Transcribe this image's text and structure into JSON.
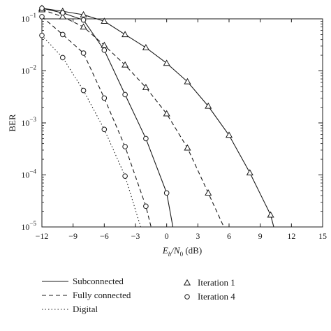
{
  "chart_data": {
    "type": "line",
    "xlabel": {
      "main": "E",
      "sub_b": "b",
      "mid": "/N",
      "sub_0": "0",
      "unit": " (dB)"
    },
    "ylabel": "BER",
    "xlim": [
      -12,
      15
    ],
    "ylim_exp": [
      -5,
      -1
    ],
    "yscale": "log",
    "x_ticks": [
      -12,
      -9,
      -6,
      -3,
      0,
      3,
      6,
      9,
      12,
      15
    ],
    "y_tick_exponents": [
      -1,
      -2,
      -3,
      -4,
      -5
    ],
    "y_tick_base": "10",
    "grid": false,
    "series": [
      {
        "name": "Subconnected",
        "style": "solid",
        "marker": "triangle",
        "iteration": "Iteration 1",
        "x": [
          -12,
          -10,
          -8,
          -6,
          -4,
          -2,
          0,
          2,
          4,
          6,
          8,
          10
        ],
        "y": [
          0.16,
          0.14,
          0.12,
          0.09,
          0.05,
          0.028,
          0.014,
          0.0062,
          0.0021,
          0.00058,
          0.00011,
          1.7e-05
        ]
      },
      {
        "name": "Fully connected",
        "style": "dashed",
        "marker": "triangle",
        "iteration": "Iteration 1",
        "x": [
          -12,
          -10,
          -8,
          -6,
          -4,
          -2,
          0,
          2,
          4
        ],
        "y": [
          0.15,
          0.11,
          0.07,
          0.031,
          0.013,
          0.0048,
          0.0015,
          0.00033,
          4.5e-05
        ]
      },
      {
        "name": "Subconnected",
        "style": "solid",
        "marker": "circle",
        "iteration": "Iteration 4",
        "x": [
          -12,
          -10,
          -8,
          -6,
          -4,
          -2,
          0
        ],
        "y": [
          0.16,
          0.13,
          0.095,
          0.025,
          0.0035,
          0.0005,
          4.5e-05
        ]
      },
      {
        "name": "Fully connected",
        "style": "dashed",
        "marker": "circle",
        "iteration": "Iteration 4",
        "x": [
          -12,
          -10,
          -8,
          -6,
          -4,
          -2
        ],
        "y": [
          0.11,
          0.05,
          0.022,
          0.003,
          0.00035,
          2.5e-05
        ]
      },
      {
        "name": "Digital",
        "style": "dotted",
        "marker": "circle",
        "iteration": "Iteration 4",
        "x": [
          -12,
          -10,
          -8,
          -6,
          -4
        ],
        "y": [
          0.048,
          0.018,
          0.0042,
          0.00075,
          9.5e-05
        ]
      }
    ],
    "tails": {
      "Subconnected-Iteration 1": [
        10.3,
        1e-05
      ],
      "Fully connected-Iteration 1": [
        5.5,
        1e-05
      ],
      "Subconnected-Iteration 4": [
        0.6,
        1e-05
      ],
      "Fully connected-Iteration 4": [
        -1.5,
        1e-05
      ],
      "Digital-Iteration 4": [
        -2.5,
        1e-05
      ]
    },
    "legend": {
      "lines": [
        {
          "label": "Subconnected",
          "style": "solid"
        },
        {
          "label": "Fully connected",
          "style": "dashed"
        },
        {
          "label": "Digital",
          "style": "dotted"
        }
      ],
      "markers": [
        {
          "label": "Iteration 1",
          "marker": "triangle"
        },
        {
          "label": "Iteration 4",
          "marker": "circle"
        }
      ],
      "position": "below-plot"
    },
    "colors": {
      "ink": "#1a1a1a"
    }
  }
}
